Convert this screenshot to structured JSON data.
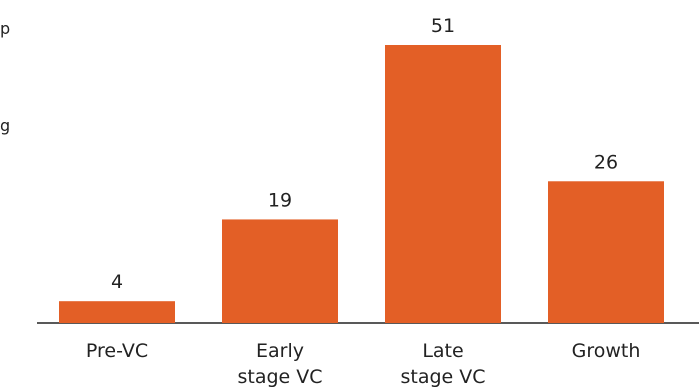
{
  "clipped_text": [
    "p",
    "g"
  ],
  "chart_data": {
    "type": "bar",
    "categories": [
      [
        "Pre-VC"
      ],
      [
        "Early",
        "stage VC"
      ],
      [
        "Late",
        "stage VC"
      ],
      [
        "Growth"
      ]
    ],
    "values": [
      4,
      19,
      51,
      26
    ],
    "data_labels": [
      "4",
      "19",
      "51",
      "26"
    ],
    "title": "",
    "xlabel": "",
    "ylabel": "",
    "ylim": [
      0,
      55
    ],
    "grid": false,
    "legend": "none",
    "colors": {
      "bar": "#E35F26",
      "axis": "#222222",
      "text": "#222222"
    }
  }
}
